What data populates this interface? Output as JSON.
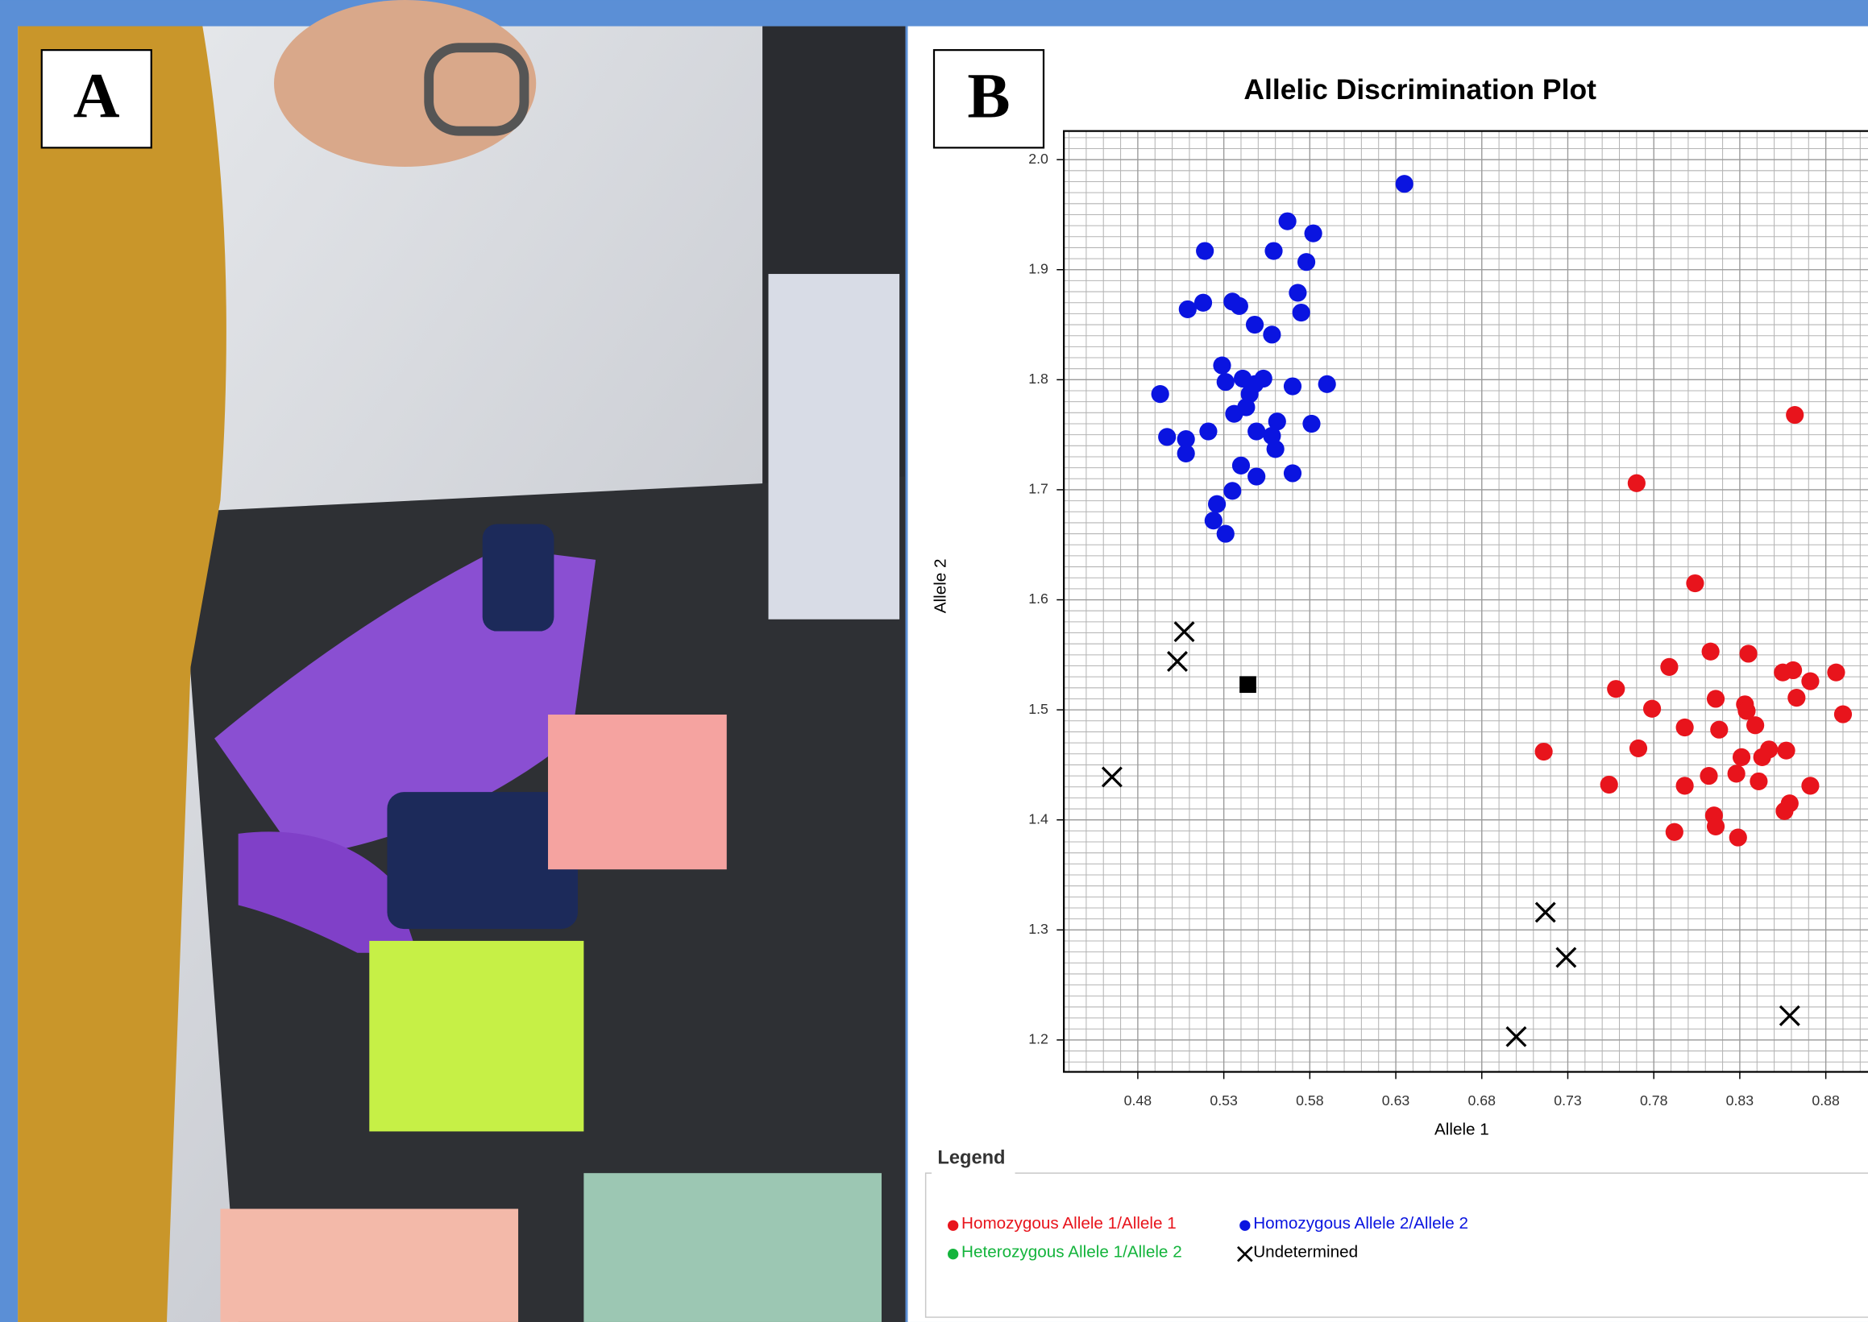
{
  "panel_labels": [
    "A",
    "B"
  ],
  "chart_data": {
    "type": "scatter",
    "title": "Allelic Discrimination Plot",
    "x_label": "Allele 1",
    "y_label": "Allele 2",
    "legend_title": "Legend",
    "xlim": [
      0.437,
      0.908
    ],
    "ylim": [
      1.171,
      2.026
    ],
    "xticks": [
      0.48,
      0.53,
      0.58,
      0.63,
      0.68,
      0.73,
      0.78,
      0.83,
      0.88
    ],
    "yticks": [
      {
        "value": 1.2,
        "label": "1.2"
      },
      {
        "value": 1.3,
        "label": "1.3"
      },
      {
        "value": 1.4,
        "label": "1.4"
      },
      {
        "value": 1.5,
        "label": "1.5"
      },
      {
        "value": 1.6,
        "label": "1.6"
      },
      {
        "value": 1.7,
        "label": "1.7"
      },
      {
        "value": 1.8,
        "label": "1.8"
      },
      {
        "value": 1.9,
        "label": "1.9"
      },
      {
        "value": 2.0,
        "label": "2.0"
      }
    ],
    "grid": true,
    "minor_grid": true,
    "series": [
      {
        "name": "Homozygous Allele 1/Allele 1",
        "color": "#e8141c",
        "marker": "circle",
        "x": [
          0.862,
          0.77,
          0.804,
          0.813,
          0.835,
          0.789,
          0.855,
          0.861,
          0.886,
          0.871,
          0.758,
          0.816,
          0.833,
          0.863,
          0.779,
          0.834,
          0.89,
          0.798,
          0.818,
          0.839,
          0.716,
          0.771,
          0.831,
          0.847,
          0.857,
          0.843,
          0.828,
          0.812,
          0.841,
          0.754,
          0.798,
          0.871,
          0.859,
          0.856,
          0.815,
          0.816,
          0.792,
          0.829
        ],
        "y": [
          1.768,
          1.706,
          1.615,
          1.553,
          1.551,
          1.539,
          1.534,
          1.536,
          1.534,
          1.526,
          1.519,
          1.51,
          1.505,
          1.511,
          1.501,
          1.499,
          1.496,
          1.484,
          1.482,
          1.486,
          1.462,
          1.465,
          1.457,
          1.464,
          1.463,
          1.457,
          1.442,
          1.44,
          1.435,
          1.432,
          1.431,
          1.431,
          1.415,
          1.408,
          1.404,
          1.394,
          1.389,
          1.384
        ]
      },
      {
        "name": "Homozygous Allele 2/Allele 2",
        "color": "#0a14e0",
        "marker": "circle",
        "x": [
          0.635,
          0.567,
          0.582,
          0.519,
          0.559,
          0.578,
          0.573,
          0.509,
          0.518,
          0.535,
          0.539,
          0.575,
          0.548,
          0.558,
          0.493,
          0.529,
          0.531,
          0.541,
          0.553,
          0.545,
          0.548,
          0.59,
          0.57,
          0.536,
          0.543,
          0.521,
          0.549,
          0.561,
          0.581,
          0.558,
          0.56,
          0.497,
          0.508,
          0.508,
          0.54,
          0.57,
          0.549,
          0.535,
          0.526,
          0.524,
          0.531
        ],
        "y": [
          1.978,
          1.944,
          1.933,
          1.917,
          1.917,
          1.907,
          1.879,
          1.864,
          1.87,
          1.871,
          1.867,
          1.861,
          1.85,
          1.841,
          1.787,
          1.813,
          1.798,
          1.801,
          1.801,
          1.787,
          1.796,
          1.796,
          1.794,
          1.769,
          1.775,
          1.753,
          1.753,
          1.762,
          1.76,
          1.749,
          1.737,
          1.748,
          1.746,
          1.733,
          1.722,
          1.715,
          1.712,
          1.699,
          1.687,
          1.672,
          1.66
        ]
      },
      {
        "name": "Heterozygous Allele 1/Allele 2",
        "color": "#14b43c",
        "marker": "circle",
        "x": [],
        "y": []
      },
      {
        "name": "Undetermined",
        "color": "#000000",
        "marker": "x",
        "x": [
          0.507,
          0.503,
          0.465,
          0.717,
          0.729,
          0.859,
          0.7
        ],
        "y": [
          1.571,
          1.544,
          1.439,
          1.316,
          1.275,
          1.222,
          1.203
        ]
      },
      {
        "color": "#000000",
        "marker": "square",
        "x": [
          0.544
        ],
        "y": [
          1.523
        ]
      }
    ]
  }
}
